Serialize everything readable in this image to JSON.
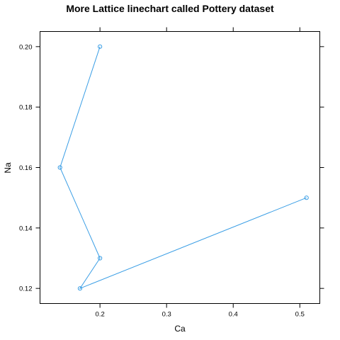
{
  "chart_data": {
    "type": "line",
    "title": "More Lattice linechart called Pottery dataset",
    "xlabel": "Ca",
    "ylabel": "Na",
    "xlim": [
      0.11,
      0.53
    ],
    "ylim": [
      0.115,
      0.205
    ],
    "xticks": [
      0.2,
      0.3,
      0.4,
      0.5
    ],
    "xtick_labels": [
      "0.2",
      "0.3",
      "0.4",
      "0.5"
    ],
    "yticks": [
      0.12,
      0.14,
      0.16,
      0.18,
      0.2
    ],
    "ytick_labels": [
      "0.12",
      "0.14",
      "0.16",
      "0.18",
      "0.20"
    ],
    "grid": false,
    "series": [
      {
        "color": "#3a9ee5",
        "marker": "circle",
        "x": [
          0.2,
          0.14,
          0.2,
          0.17,
          0.51
        ],
        "y": [
          0.2,
          0.16,
          0.13,
          0.12,
          0.15
        ]
      }
    ]
  }
}
